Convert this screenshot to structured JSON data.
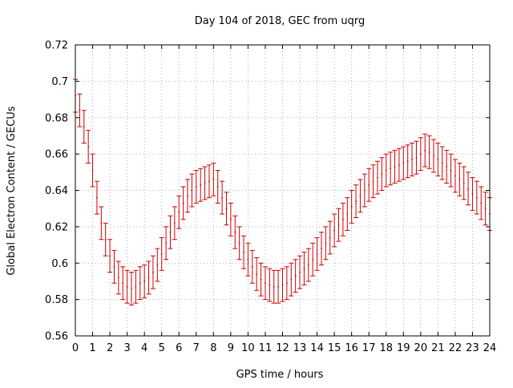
{
  "chart_data": {
    "type": "line",
    "title": "Day 104 of 2018, GEC from uqrg",
    "xlabel": "GPS time / hours",
    "ylabel": "Global Electron Content / GECUs",
    "xlim": [
      0,
      24
    ],
    "ylim": [
      0.56,
      0.72
    ],
    "x_ticks": [
      "0",
      "1",
      "2",
      "3",
      "4",
      "5",
      "6",
      "7",
      "8",
      "9",
      "10",
      "11",
      "12",
      "13",
      "14",
      "15",
      "16",
      "17",
      "18",
      "19",
      "20",
      "21",
      "22",
      "23",
      "24"
    ],
    "y_ticks": [
      "0.56",
      "0.58",
      "0.6",
      "0.62",
      "0.64",
      "0.66",
      "0.68",
      "0.7",
      "0.72"
    ],
    "grid": true,
    "legend": "none",
    "series_color": "#cc0000",
    "error_bar_halfwidth": 0.009,
    "x": [
      0.0,
      0.25,
      0.5,
      0.75,
      1.0,
      1.25,
      1.5,
      1.75,
      2.0,
      2.25,
      2.5,
      2.75,
      3.0,
      3.25,
      3.5,
      3.75,
      4.0,
      4.25,
      4.5,
      4.75,
      5.0,
      5.25,
      5.5,
      5.75,
      6.0,
      6.25,
      6.5,
      6.75,
      7.0,
      7.25,
      7.5,
      7.75,
      8.0,
      8.25,
      8.5,
      8.75,
      9.0,
      9.25,
      9.5,
      9.75,
      10.0,
      10.25,
      10.5,
      10.75,
      11.0,
      11.25,
      11.5,
      11.75,
      12.0,
      12.25,
      12.5,
      12.75,
      13.0,
      13.25,
      13.5,
      13.75,
      14.0,
      14.25,
      14.5,
      14.75,
      15.0,
      15.25,
      15.5,
      15.75,
      16.0,
      16.25,
      16.5,
      16.75,
      17.0,
      17.25,
      17.5,
      17.75,
      18.0,
      18.25,
      18.5,
      18.75,
      19.0,
      19.25,
      19.5,
      19.75,
      20.0,
      20.25,
      20.5,
      20.75,
      21.0,
      21.25,
      21.5,
      21.75,
      22.0,
      22.25,
      22.5,
      22.75,
      23.0,
      23.25,
      23.5,
      23.75,
      24.0
    ],
    "y": [
      0.692,
      0.684,
      0.675,
      0.664,
      0.651,
      0.636,
      0.622,
      0.613,
      0.604,
      0.598,
      0.592,
      0.589,
      0.587,
      0.586,
      0.587,
      0.589,
      0.59,
      0.592,
      0.595,
      0.599,
      0.605,
      0.611,
      0.617,
      0.622,
      0.628,
      0.633,
      0.637,
      0.64,
      0.642,
      0.643,
      0.644,
      0.645,
      0.646,
      0.642,
      0.636,
      0.63,
      0.624,
      0.617,
      0.611,
      0.606,
      0.602,
      0.598,
      0.594,
      0.591,
      0.589,
      0.588,
      0.587,
      0.587,
      0.588,
      0.589,
      0.591,
      0.593,
      0.595,
      0.597,
      0.599,
      0.602,
      0.605,
      0.608,
      0.611,
      0.614,
      0.618,
      0.621,
      0.624,
      0.627,
      0.631,
      0.634,
      0.637,
      0.64,
      0.643,
      0.645,
      0.647,
      0.649,
      0.651,
      0.652,
      0.653,
      0.654,
      0.655,
      0.656,
      0.657,
      0.658,
      0.66,
      0.662,
      0.661,
      0.659,
      0.657,
      0.655,
      0.653,
      0.651,
      0.648,
      0.646,
      0.644,
      0.641,
      0.638,
      0.636,
      0.633,
      0.63,
      0.627
    ]
  }
}
